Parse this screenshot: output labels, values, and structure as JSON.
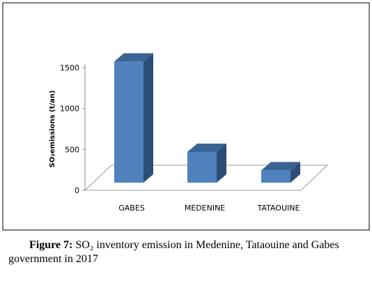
{
  "chart_data": {
    "type": "bar3d",
    "y_label": "SO₂emissions (t/an)",
    "categories": [
      "GABES",
      "MEDENINE",
      "TATAOUINE"
    ],
    "values": [
      1480,
      375,
      150
    ],
    "color": "#4f81bd",
    "ylim": [
      0,
      1500
    ],
    "yticks": [
      0,
      500,
      1000,
      1500
    ]
  },
  "caption": {
    "label": "Figure 7:",
    "text": "SO₂ inventory emission in Medenine, Tataouine and Gabes government in 2017"
  }
}
